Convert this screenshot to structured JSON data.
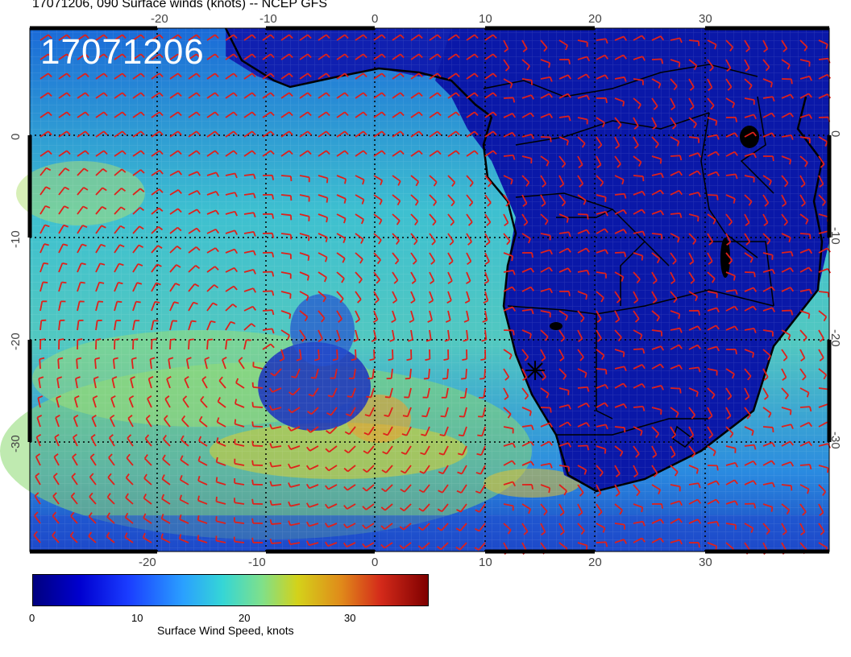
{
  "title": "17071206, 090 Surface winds (knots) -- NCEP GFS",
  "stamp": "17071206",
  "axes": {
    "x_ticks": [
      "-20",
      "-10",
      "0",
      "10",
      "20",
      "30"
    ],
    "y_ticks": [
      "0",
      "-10",
      "-20",
      "-30"
    ]
  },
  "colorbar": {
    "label": "Surface Wind Speed, knots",
    "ticks": [
      "0",
      "10",
      "20",
      "30"
    ]
  },
  "colors": {
    "barbs": "#e0201a",
    "coast": "#000000",
    "ocean_calm": "#1030c8",
    "ocean_strong": "#40c8c8"
  },
  "icons": {
    "station": "star-marker-icon"
  }
}
